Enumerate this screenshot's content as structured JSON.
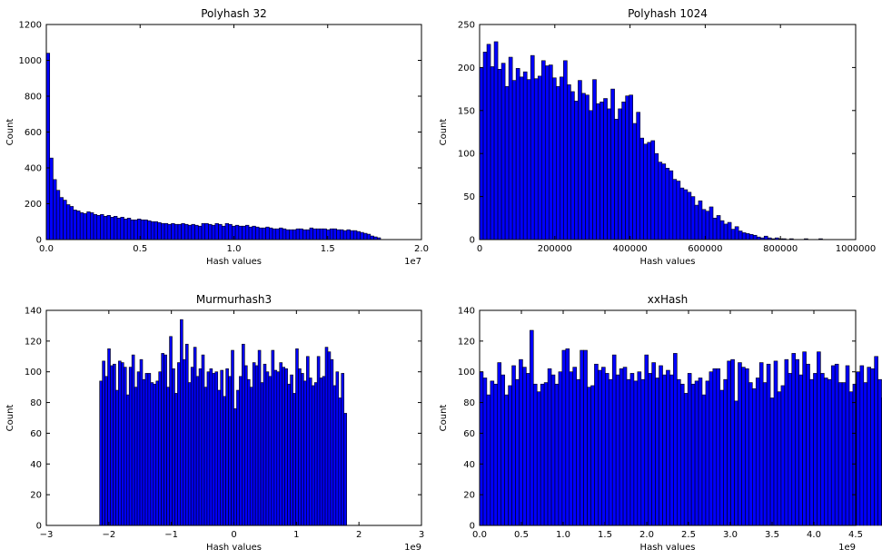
{
  "chart_data": [
    {
      "type": "bar",
      "title": "Polyhash 32",
      "xlabel": "Hash values",
      "ylabel": "Count",
      "xlim": [
        0,
        20000000
      ],
      "ylim": [
        0,
        1200
      ],
      "x_ticks": [
        0,
        5000000,
        10000000,
        15000000,
        20000000
      ],
      "x_tick_labels": [
        "0.0",
        "0.5",
        "1.0",
        "1.5",
        "2.0"
      ],
      "x_offset_label": "1e7",
      "y_ticks": [
        0,
        200,
        400,
        600,
        800,
        1000,
        1200
      ],
      "y_tick_labels": [
        "0",
        "200",
        "400",
        "600",
        "800",
        "1000",
        "1200"
      ],
      "bins_start": 0,
      "bin_width": 180000,
      "values": [
        1040,
        455,
        335,
        275,
        235,
        220,
        195,
        185,
        165,
        160,
        150,
        145,
        155,
        150,
        140,
        135,
        140,
        130,
        135,
        125,
        130,
        120,
        125,
        115,
        120,
        110,
        110,
        115,
        110,
        110,
        105,
        100,
        100,
        95,
        90,
        90,
        85,
        90,
        85,
        85,
        90,
        85,
        80,
        85,
        80,
        75,
        90,
        90,
        85,
        80,
        90,
        85,
        75,
        90,
        85,
        75,
        80,
        75,
        75,
        80,
        70,
        75,
        70,
        65,
        65,
        70,
        65,
        60,
        60,
        65,
        60,
        55,
        55,
        55,
        60,
        60,
        55,
        55,
        65,
        60,
        60,
        60,
        60,
        55,
        60,
        60,
        55,
        55,
        50,
        55,
        50,
        50,
        45,
        40,
        35,
        30,
        20,
        15,
        10
      ]
    },
    {
      "type": "bar",
      "title": "Polyhash 1024",
      "xlabel": "Hash values",
      "ylabel": "Count",
      "xlim": [
        0,
        1000000
      ],
      "ylim": [
        0,
        250
      ],
      "x_ticks": [
        0,
        200000,
        400000,
        600000,
        800000,
        1000000
      ],
      "x_tick_labels": [
        "0",
        "200000",
        "400000",
        "600000",
        "800000",
        "1000000"
      ],
      "y_ticks": [
        0,
        50,
        100,
        150,
        200,
        250
      ],
      "y_tick_labels": [
        "0",
        "50",
        "100",
        "150",
        "200",
        "250"
      ],
      "bins_start": 0,
      "bin_width": 9700,
      "values": [
        200,
        218,
        227,
        201,
        230,
        198,
        205,
        178,
        212,
        185,
        199,
        189,
        195,
        186,
        214,
        187,
        190,
        208,
        202,
        203,
        188,
        178,
        189,
        208,
        180,
        172,
        161,
        185,
        170,
        168,
        150,
        186,
        158,
        160,
        164,
        152,
        175,
        140,
        152,
        160,
        167,
        168,
        135,
        148,
        118,
        111,
        113,
        115,
        100,
        90,
        88,
        83,
        80,
        70,
        68,
        60,
        58,
        55,
        50,
        40,
        45,
        35,
        33,
        38,
        25,
        28,
        22,
        18,
        20,
        12,
        15,
        10,
        8,
        7,
        6,
        5,
        3,
        2,
        4,
        2,
        1,
        2,
        1,
        1,
        0,
        1,
        0,
        0,
        0,
        1,
        0,
        0,
        0,
        1
      ]
    },
    {
      "type": "bar",
      "title": "Murmurhash3",
      "xlabel": "Hash values",
      "ylabel": "Count",
      "xlim": [
        -3000000000,
        3000000000
      ],
      "ylim": [
        0,
        140
      ],
      "x_ticks": [
        -3000000000,
        -2000000000,
        -1000000000,
        0,
        1000000000,
        2000000000,
        3000000000
      ],
      "x_tick_labels": [
        "−3",
        "−2",
        "−1",
        "0",
        "1",
        "2",
        "3"
      ],
      "x_offset_label": "1e9",
      "y_ticks": [
        0,
        20,
        40,
        60,
        80,
        100,
        120,
        140
      ],
      "y_tick_labels": [
        "0",
        "20",
        "40",
        "60",
        "80",
        "100",
        "120",
        "140"
      ],
      "bins_start": -2147483648,
      "bin_width": 42949673,
      "values": [
        94,
        107,
        97,
        115,
        104,
        105,
        88,
        107,
        106,
        103,
        85,
        103,
        111,
        90,
        100,
        108,
        95,
        99,
        99,
        93,
        92,
        94,
        100,
        112,
        111,
        90,
        123,
        102,
        86,
        106,
        134,
        108,
        118,
        93,
        103,
        116,
        97,
        102,
        111,
        90,
        100,
        102,
        99,
        100,
        88,
        101,
        84,
        102,
        97,
        114,
        76,
        88,
        97,
        118,
        104,
        95,
        90,
        106,
        104,
        114,
        93,
        105,
        100,
        97,
        114,
        101,
        100,
        106,
        103,
        102,
        92,
        98,
        86,
        115,
        102,
        99,
        94,
        110,
        96,
        91,
        93,
        110,
        96,
        97,
        116,
        113,
        108,
        91,
        100,
        83,
        99,
        73
      ]
    },
    {
      "type": "bar",
      "title": "xxHash",
      "xlabel": "Hash values",
      "ylabel": "Count",
      "xlim": [
        0,
        4500000000
      ],
      "ylim": [
        0,
        140
      ],
      "x_ticks": [
        0,
        500000000,
        1000000000,
        1500000000,
        2000000000,
        2500000000,
        3000000000,
        3500000000,
        4000000000,
        4500000000
      ],
      "x_tick_labels": [
        "0.0",
        "0.5",
        "1.0",
        "1.5",
        "2.0",
        "2.5",
        "3.0",
        "3.5",
        "4.0",
        "4.5"
      ],
      "x_offset_label": "1e9",
      "y_ticks": [
        0,
        20,
        40,
        60,
        80,
        100,
        120,
        140
      ],
      "y_tick_labels": [
        "0",
        "20",
        "40",
        "60",
        "80",
        "100",
        "120",
        "140"
      ],
      "bins_start": 0,
      "bin_width": 42949673,
      "values": [
        100,
        96,
        85,
        94,
        92,
        106,
        98,
        85,
        91,
        104,
        95,
        108,
        103,
        99,
        127,
        92,
        87,
        92,
        93,
        102,
        98,
        92,
        100,
        114,
        115,
        100,
        103,
        95,
        114,
        114,
        90,
        91,
        105,
        101,
        103,
        99,
        95,
        111,
        98,
        102,
        103,
        95,
        99,
        94,
        100,
        95,
        111,
        99,
        106,
        96,
        104,
        98,
        101,
        98,
        112,
        95,
        92,
        86,
        99,
        92,
        94,
        96,
        85,
        94,
        100,
        102,
        102,
        88,
        95,
        107,
        108,
        81,
        106,
        103,
        102,
        93,
        89,
        96,
        106,
        93,
        105,
        83,
        107,
        87,
        91,
        108,
        99,
        112,
        108,
        98,
        113,
        105,
        95,
        99,
        113,
        99,
        96,
        95,
        104,
        105,
        93,
        93,
        104,
        87,
        92,
        100,
        104,
        93,
        103,
        102,
        110,
        95,
        83,
        103,
        96,
        93,
        101,
        109,
        108,
        103,
        103,
        88,
        111,
        91
      ]
    }
  ]
}
